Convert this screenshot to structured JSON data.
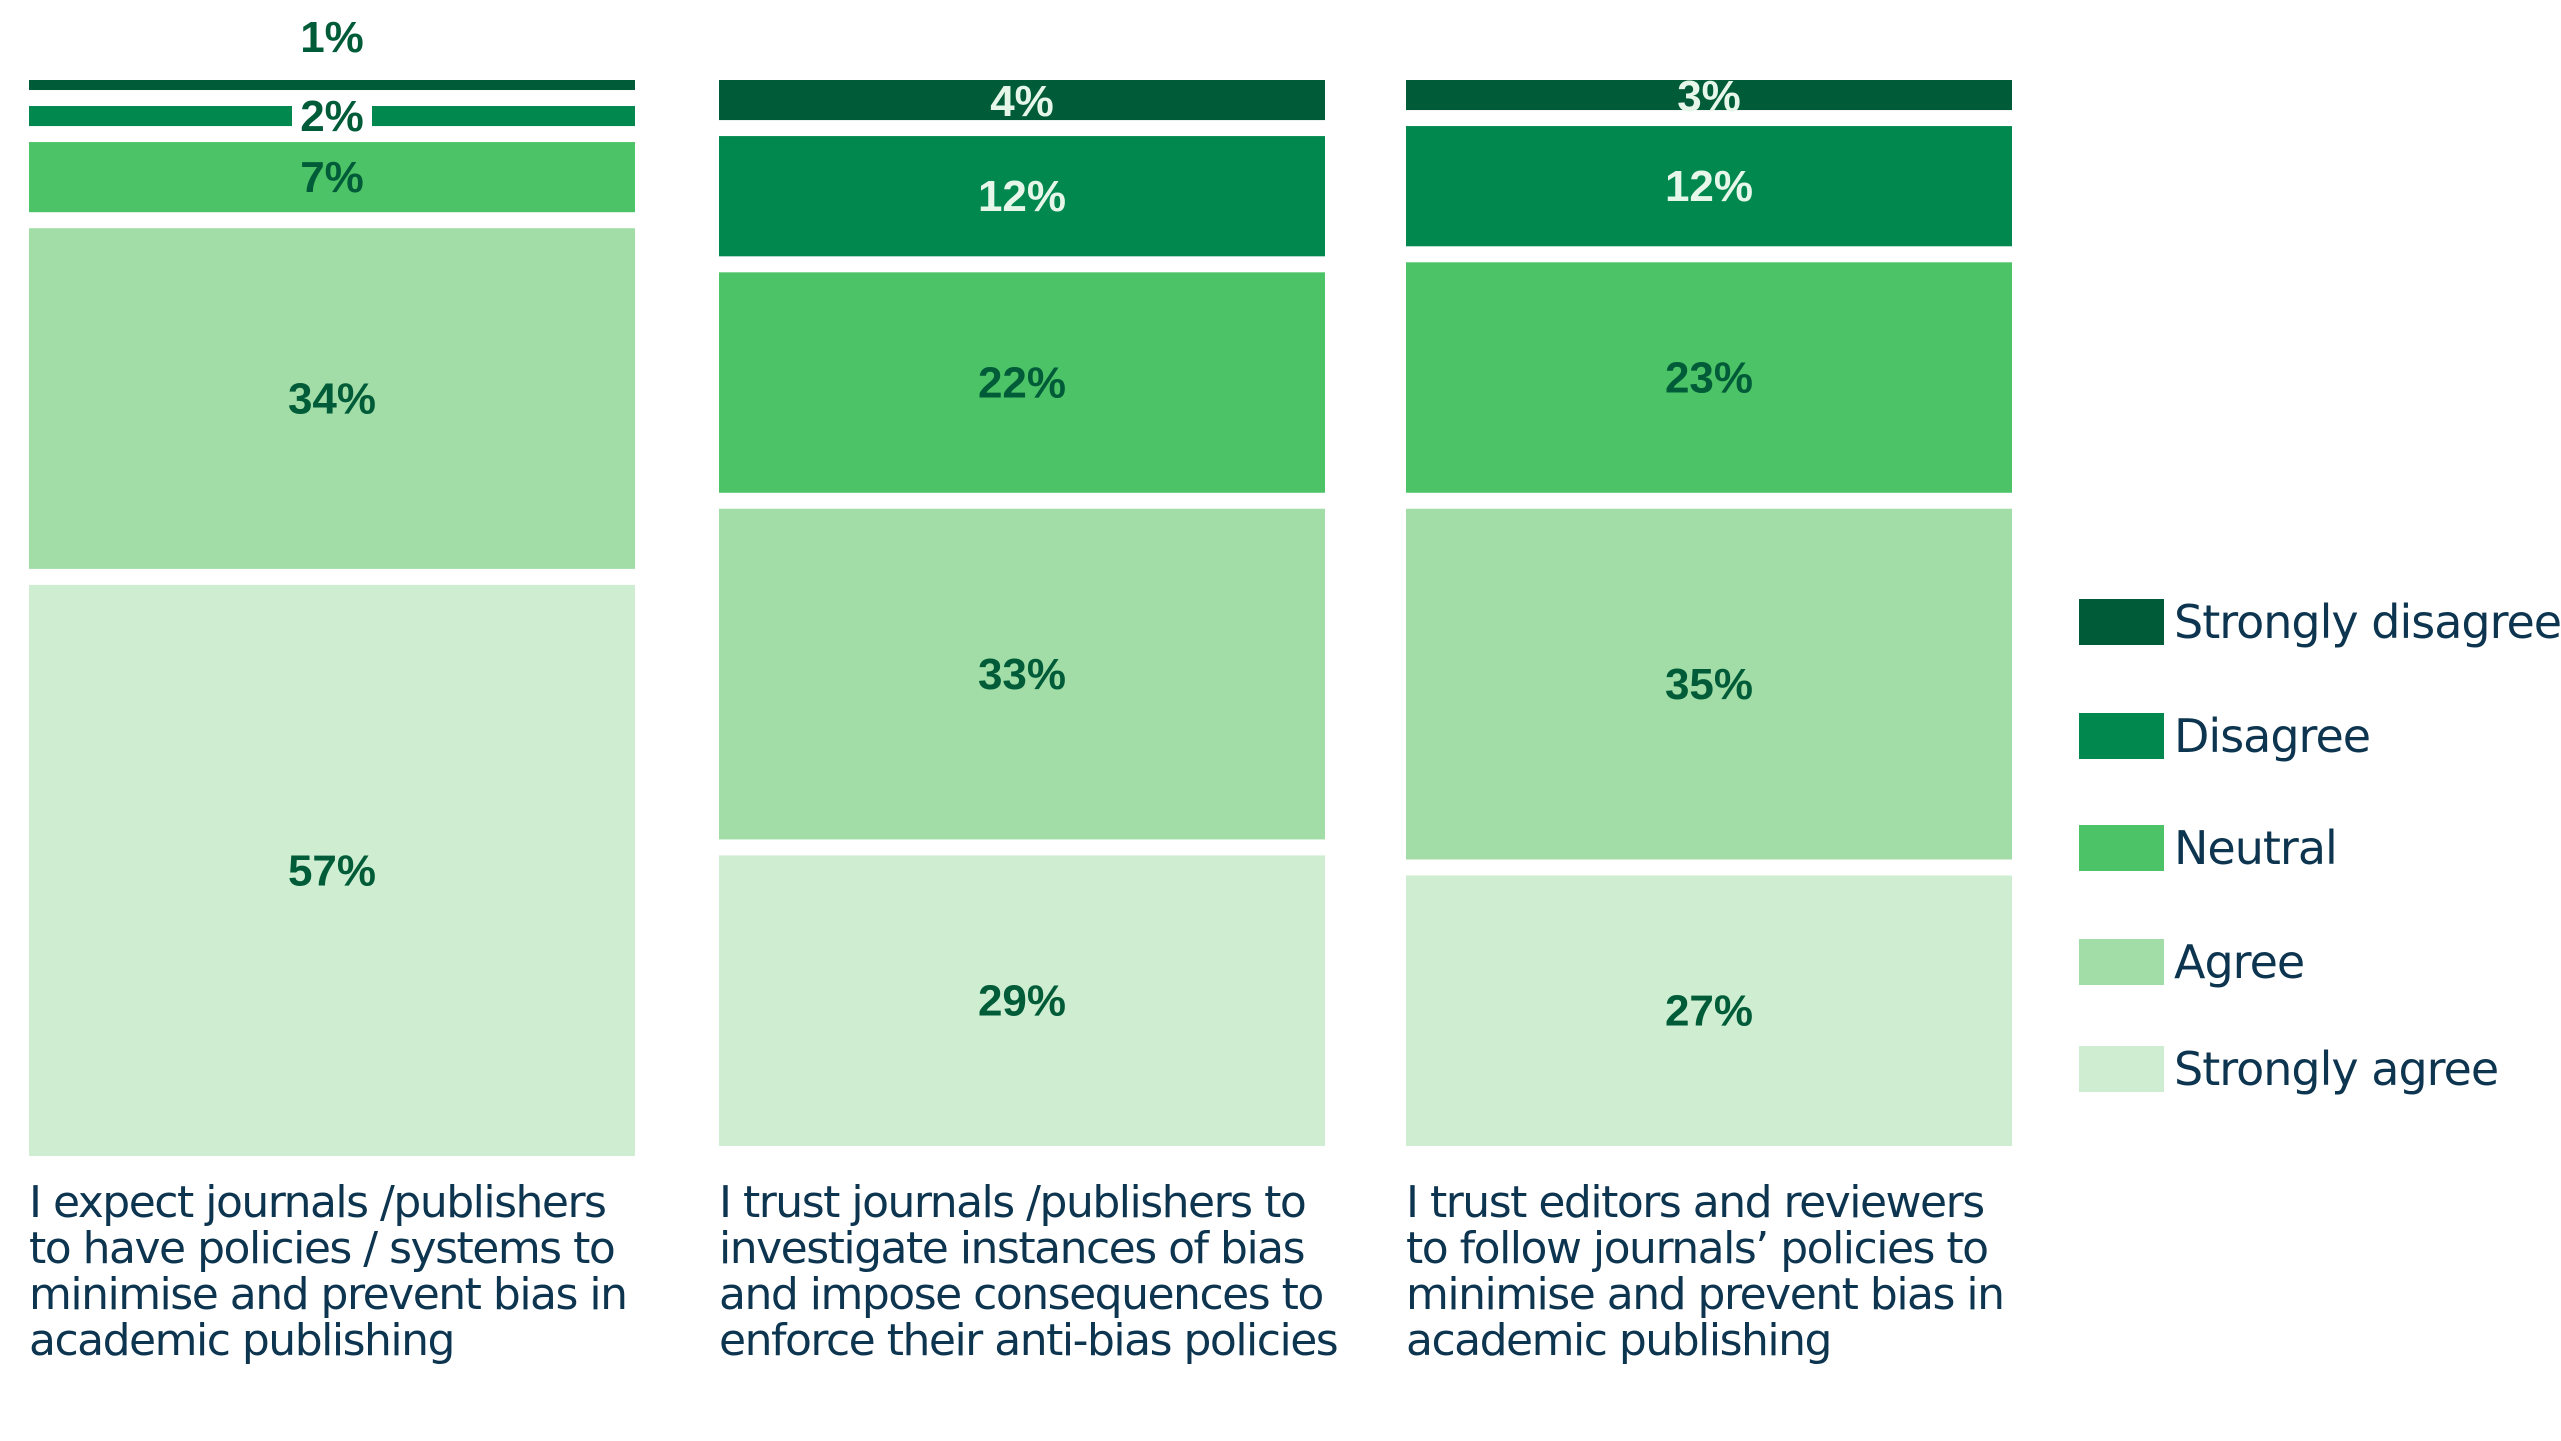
{
  "chart_data": {
    "type": "bar",
    "stacked": true,
    "orientation": "vertical",
    "categories": [
      "I expect journals /publishers to have policies / systems to minimise and prevent bias in academic publishing",
      "I trust journals /publishers to investigate instances of bias and impose consequences to enforce their anti-bias policies",
      "I trust editors and reviewers to follow journals’ policies to minimise and prevent bias in academic publishing"
    ],
    "series": [
      {
        "name": "Strongly disagree",
        "color": "#005c38",
        "values": [
          1,
          4,
          3
        ],
        "labels": [
          "1%",
          "4%",
          "3%"
        ]
      },
      {
        "name": "Disagree",
        "color": "#00884f",
        "values": [
          2,
          12,
          12
        ],
        "labels": [
          "2%",
          "12%",
          "12%"
        ]
      },
      {
        "name": "Neutral",
        "color": "#4cc366",
        "values": [
          7,
          22,
          23
        ],
        "labels": [
          "7%",
          "22%",
          "23%"
        ]
      },
      {
        "name": "Agree",
        "color": "#a2dca6",
        "values": [
          34,
          33,
          35
        ],
        "labels": [
          "34%",
          "33%",
          "35%"
        ]
      },
      {
        "name": "Strongly agree",
        "color": "#ceedd1",
        "values": [
          57,
          29,
          27
        ],
        "labels": [
          "57%",
          "29%",
          "27%"
        ]
      }
    ],
    "legend_position": "right",
    "grid": false,
    "ylim": [
      0,
      100
    ]
  }
}
